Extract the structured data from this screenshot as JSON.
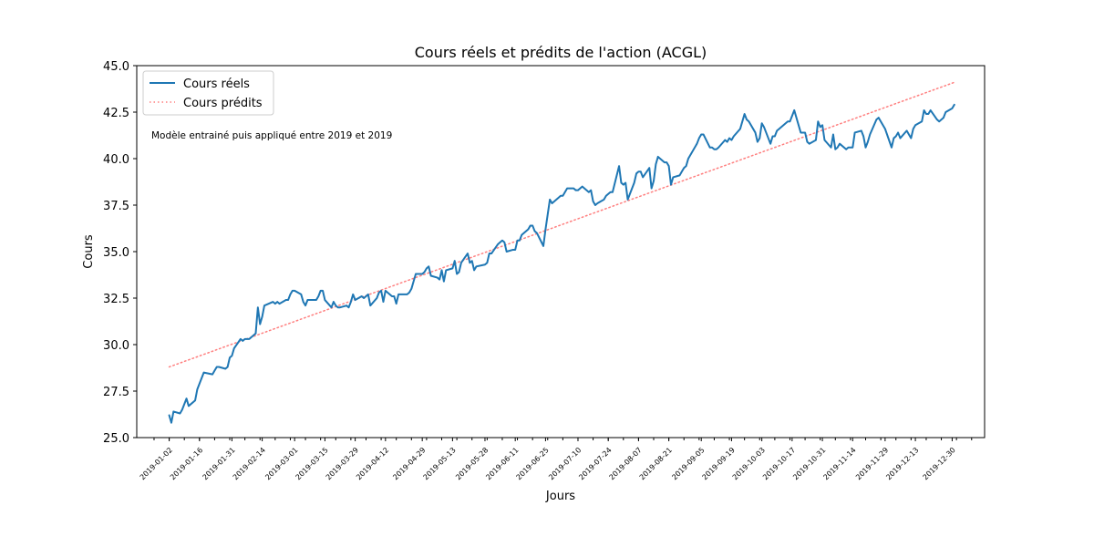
{
  "chart_data": {
    "type": "line",
    "title": "Cours réels et prédits de l'action (ACGL)",
    "xlabel": "Jours",
    "ylabel": "Cours",
    "ylim": [
      25.0,
      45.0
    ],
    "yticks": [
      "25.0",
      "27.5",
      "30.0",
      "32.5",
      "35.0",
      "37.5",
      "40.0",
      "42.5",
      "45.0"
    ],
    "xlim": [
      "2018-12-18",
      "2020-01-14"
    ],
    "xticks": [
      "2019-01-02",
      "2019-01-16",
      "2019-01-31",
      "2019-02-14",
      "2019-03-01",
      "2019-03-15",
      "2019-03-29",
      "2019-04-12",
      "2019-04-29",
      "2019-05-13",
      "2019-05-28",
      "2019-06-11",
      "2019-06-25",
      "2019-07-10",
      "2019-07-24",
      "2019-08-07",
      "2019-08-21",
      "2019-09-05",
      "2019-09-19",
      "2019-10-03",
      "2019-10-17",
      "2019-10-31",
      "2019-11-14",
      "2019-11-29",
      "2019-12-13",
      "2019-12-30"
    ],
    "legend_position": "upper-left",
    "grid": false,
    "annotation": "Modèle entrainé puis appliqué entre 2019 et 2019",
    "colors": {
      "actual": "#1f77b4",
      "predicted": "#ff7f7f"
    },
    "series": [
      {
        "name": "Cours réels",
        "style": "solid",
        "x": [
          "2019-01-02",
          "2019-01-03",
          "2019-01-04",
          "2019-01-07",
          "2019-01-08",
          "2019-01-09",
          "2019-01-10",
          "2019-01-11",
          "2019-01-14",
          "2019-01-15",
          "2019-01-16",
          "2019-01-17",
          "2019-01-18",
          "2019-01-22",
          "2019-01-23",
          "2019-01-24",
          "2019-01-25",
          "2019-01-28",
          "2019-01-29",
          "2019-01-30",
          "2019-01-31",
          "2019-02-01",
          "2019-02-04",
          "2019-02-05",
          "2019-02-06",
          "2019-02-07",
          "2019-02-08",
          "2019-02-11",
          "2019-02-12",
          "2019-02-13",
          "2019-02-14",
          "2019-02-15",
          "2019-02-19",
          "2019-02-20",
          "2019-02-21",
          "2019-02-22",
          "2019-02-25",
          "2019-02-26",
          "2019-02-27",
          "2019-02-28",
          "2019-03-01",
          "2019-03-04",
          "2019-03-05",
          "2019-03-06",
          "2019-03-07",
          "2019-03-08",
          "2019-03-11",
          "2019-03-12",
          "2019-03-13",
          "2019-03-14",
          "2019-03-15",
          "2019-03-18",
          "2019-03-19",
          "2019-03-20",
          "2019-03-21",
          "2019-03-22",
          "2019-03-25",
          "2019-03-26",
          "2019-03-27",
          "2019-03-28",
          "2019-03-29",
          "2019-04-01",
          "2019-04-02",
          "2019-04-03",
          "2019-04-04",
          "2019-04-05",
          "2019-04-08",
          "2019-04-09",
          "2019-04-10",
          "2019-04-11",
          "2019-04-12",
          "2019-04-15",
          "2019-04-16",
          "2019-04-17",
          "2019-04-18",
          "2019-04-22",
          "2019-04-23",
          "2019-04-24",
          "2019-04-25",
          "2019-04-26",
          "2019-04-29",
          "2019-04-30",
          "2019-05-01",
          "2019-05-02",
          "2019-05-03",
          "2019-05-06",
          "2019-05-07",
          "2019-05-08",
          "2019-05-09",
          "2019-05-10",
          "2019-05-13",
          "2019-05-14",
          "2019-05-15",
          "2019-05-16",
          "2019-05-17",
          "2019-05-20",
          "2019-05-21",
          "2019-05-22",
          "2019-05-23",
          "2019-05-24",
          "2019-05-28",
          "2019-05-29",
          "2019-05-30",
          "2019-05-31",
          "2019-06-03",
          "2019-06-04",
          "2019-06-05",
          "2019-06-06",
          "2019-06-07",
          "2019-06-10",
          "2019-06-11",
          "2019-06-12",
          "2019-06-13",
          "2019-06-14",
          "2019-06-17",
          "2019-06-18",
          "2019-06-19",
          "2019-06-20",
          "2019-06-21",
          "2019-06-24",
          "2019-06-25",
          "2019-06-26",
          "2019-06-27",
          "2019-06-28",
          "2019-07-01",
          "2019-07-02",
          "2019-07-03",
          "2019-07-05",
          "2019-07-08",
          "2019-07-09",
          "2019-07-10",
          "2019-07-11",
          "2019-07-12",
          "2019-07-15",
          "2019-07-16",
          "2019-07-17",
          "2019-07-18",
          "2019-07-19",
          "2019-07-22",
          "2019-07-23",
          "2019-07-24",
          "2019-07-25",
          "2019-07-26",
          "2019-07-29",
          "2019-07-30",
          "2019-07-31",
          "2019-08-01",
          "2019-08-02",
          "2019-08-05",
          "2019-08-06",
          "2019-08-07",
          "2019-08-08",
          "2019-08-09",
          "2019-08-12",
          "2019-08-13",
          "2019-08-14",
          "2019-08-15",
          "2019-08-16",
          "2019-08-19",
          "2019-08-20",
          "2019-08-21",
          "2019-08-22",
          "2019-08-23",
          "2019-08-26",
          "2019-08-27",
          "2019-08-28",
          "2019-08-29",
          "2019-08-30",
          "2019-09-03",
          "2019-09-04",
          "2019-09-05",
          "2019-09-06",
          "2019-09-09",
          "2019-09-10",
          "2019-09-11",
          "2019-09-12",
          "2019-09-13",
          "2019-09-16",
          "2019-09-17",
          "2019-09-18",
          "2019-09-19",
          "2019-09-20",
          "2019-09-23",
          "2019-09-24",
          "2019-09-25",
          "2019-09-26",
          "2019-09-27",
          "2019-09-30",
          "2019-10-01",
          "2019-10-02",
          "2019-10-03",
          "2019-10-04",
          "2019-10-07",
          "2019-10-08",
          "2019-10-09",
          "2019-10-10",
          "2019-10-11",
          "2019-10-14",
          "2019-10-15",
          "2019-10-16",
          "2019-10-17",
          "2019-10-18",
          "2019-10-21",
          "2019-10-22",
          "2019-10-23",
          "2019-10-24",
          "2019-10-25",
          "2019-10-28",
          "2019-10-29",
          "2019-10-30",
          "2019-10-31",
          "2019-11-01",
          "2019-11-04",
          "2019-11-05",
          "2019-11-06",
          "2019-11-07",
          "2019-11-08",
          "2019-11-11",
          "2019-11-12",
          "2019-11-13",
          "2019-11-14",
          "2019-11-15",
          "2019-11-18",
          "2019-11-19",
          "2019-11-20",
          "2019-11-21",
          "2019-11-22",
          "2019-11-25",
          "2019-11-26",
          "2019-11-27",
          "2019-11-29",
          "2019-12-02",
          "2019-12-03",
          "2019-12-04",
          "2019-12-05",
          "2019-12-06",
          "2019-12-09",
          "2019-12-10",
          "2019-12-11",
          "2019-12-12",
          "2019-12-13",
          "2019-12-16",
          "2019-12-17",
          "2019-12-18",
          "2019-12-19",
          "2019-12-20",
          "2019-12-23",
          "2019-12-24",
          "2019-12-26",
          "2019-12-27",
          "2019-12-30",
          "2019-12-31"
        ],
        "y": [
          26.2,
          25.8,
          26.4,
          26.3,
          26.5,
          26.8,
          27.1,
          26.7,
          27.0,
          27.6,
          27.9,
          28.2,
          28.5,
          28.4,
          28.6,
          28.8,
          28.8,
          28.7,
          28.8,
          29.3,
          29.4,
          29.8,
          30.3,
          30.2,
          30.3,
          30.3,
          30.3,
          30.6,
          32.0,
          31.1,
          31.5,
          32.1,
          32.3,
          32.2,
          32.3,
          32.2,
          32.4,
          32.4,
          32.7,
          32.9,
          32.9,
          32.7,
          32.3,
          32.1,
          32.4,
          32.4,
          32.4,
          32.6,
          32.9,
          32.9,
          32.4,
          32.0,
          32.3,
          32.1,
          32.0,
          32.0,
          32.1,
          32.0,
          32.3,
          32.7,
          32.4,
          32.6,
          32.5,
          32.6,
          32.7,
          32.1,
          32.5,
          32.8,
          32.9,
          32.3,
          32.9,
          32.6,
          32.6,
          32.2,
          32.7,
          32.7,
          32.8,
          33.0,
          33.4,
          33.8,
          33.8,
          33.9,
          34.1,
          34.2,
          33.7,
          33.6,
          33.5,
          34.0,
          33.4,
          34.0,
          34.1,
          34.5,
          33.8,
          33.9,
          34.4,
          34.9,
          34.4,
          34.5,
          34.0,
          34.2,
          34.3,
          34.4,
          34.9,
          34.9,
          35.4,
          35.5,
          35.6,
          35.5,
          35.0,
          35.1,
          35.1,
          35.6,
          35.6,
          35.9,
          36.2,
          36.4,
          36.4,
          36.1,
          36.0,
          35.3,
          36.2,
          37.0,
          37.8,
          37.6,
          37.9,
          38.0,
          38.0,
          38.4,
          38.4,
          38.3,
          38.3,
          38.4,
          38.5,
          38.2,
          38.3,
          37.7,
          37.5,
          37.6,
          37.8,
          38.0,
          38.1,
          38.2,
          38.2,
          39.6,
          38.7,
          38.6,
          38.7,
          37.8,
          38.7,
          39.2,
          39.3,
          39.3,
          39.0,
          39.5,
          38.4,
          38.8,
          39.7,
          40.1,
          39.8,
          39.8,
          39.6,
          38.6,
          39.0,
          39.1,
          39.3,
          39.5,
          39.6,
          40.0,
          40.8,
          41.1,
          41.3,
          41.3,
          40.6,
          40.6,
          40.5,
          40.5,
          40.6,
          41.0,
          40.9,
          41.1,
          41.0,
          41.2,
          41.6,
          42.0,
          42.4,
          42.1,
          42.0,
          41.4,
          40.9,
          41.1,
          41.9,
          41.7,
          40.8,
          41.2,
          41.2,
          41.5,
          41.6,
          41.9,
          42.0,
          42.0,
          42.3,
          42.6,
          41.4,
          41.4,
          41.4,
          40.9,
          40.8,
          41.0,
          42.0,
          41.7,
          41.8,
          41.0,
          40.6,
          41.3,
          40.5,
          40.6,
          40.8,
          40.5,
          40.6,
          40.6,
          40.6,
          41.4,
          41.5,
          41.2,
          40.6,
          40.9,
          41.3,
          42.1,
          42.2,
          42.0,
          41.6,
          40.6,
          41.1,
          41.2,
          41.4,
          41.1,
          41.5,
          41.3,
          41.1,
          41.6,
          41.8,
          42.0,
          42.6,
          42.4,
          42.4,
          42.6,
          42.1,
          42.0,
          42.2,
          42.5,
          42.7,
          42.9
        ]
      },
      {
        "name": "Cours prédits",
        "style": "dotted",
        "x": [
          "2019-01-02",
          "2019-12-31"
        ],
        "y": [
          28.8,
          44.1
        ]
      }
    ]
  }
}
